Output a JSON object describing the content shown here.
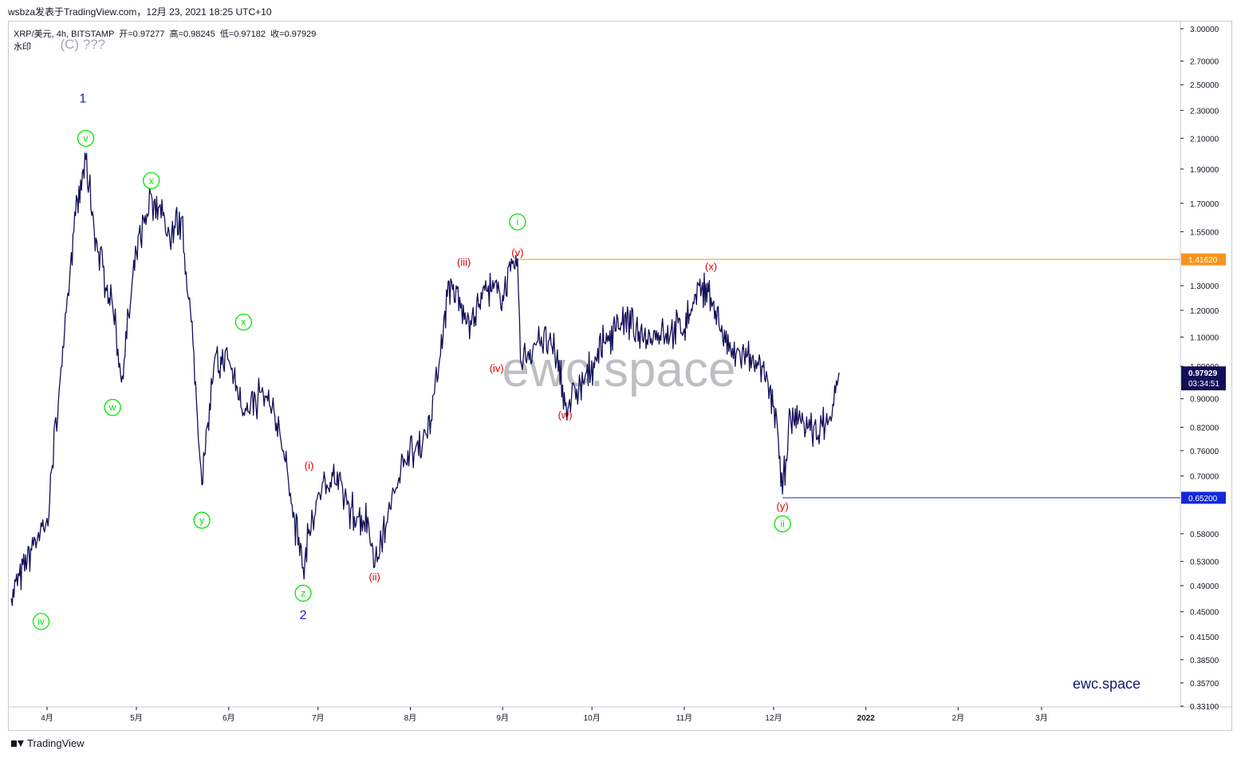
{
  "header": {
    "publish_line": "wsbza发表于TradingView.com，12月 23, 2021 18:25 UTC+10"
  },
  "legend": {
    "line": "XRP/美元, 4h, BITSTAMP  开=0.97277  高=0.98245  低=0.97182  收=0.97929",
    "sub": "水印"
  },
  "watermark": "ewc.space",
  "brand_label": "ewc.space",
  "footer": {
    "brand": "TradingView"
  },
  "colors": {
    "candles": "#131059",
    "green_wave": "#00e600",
    "red_wave": "#e00000",
    "blue_wave": "#1a1ad6",
    "gray_label": "#a5a7b0",
    "orange_level": "#f7941d",
    "blue_level": "#1428d8",
    "last_price_bg": "#131059",
    "brand_text": "#0d1a6e"
  },
  "chart_data": {
    "type": "line",
    "symbol": "XRP/美元",
    "timeframe": "4h",
    "exchange": "BITSTAMP",
    "y_scale": "log",
    "ylim": [
      0.331,
      3.0
    ],
    "y_ticks": [
      "3.00000",
      "2.70000",
      "2.50000",
      "2.30000",
      "2.10000",
      "1.90000",
      "1.70000",
      "1.55000",
      "1.30000",
      "1.20000",
      "1.10000",
      "1.00000",
      "0.90000",
      "0.82000",
      "0.76000",
      "0.70000",
      "0.58000",
      "0.53000",
      "0.49000",
      "0.45000",
      "0.41500",
      "0.38500",
      "0.35700",
      "0.33100"
    ],
    "x_ticks": [
      "4月",
      "5月",
      "6月",
      "7月",
      "8月",
      "9月",
      "10月",
      "11月",
      "12月",
      "2022",
      "2月",
      "3月"
    ],
    "series": [
      {
        "name": "XRP/美元",
        "x": [
          "2021-03-20",
          "2021-03-28",
          "2021-04-01",
          "2021-04-06",
          "2021-04-10",
          "2021-04-14",
          "2021-04-18",
          "2021-04-23",
          "2021-04-26",
          "2021-05-01",
          "2021-05-06",
          "2021-05-12",
          "2021-05-16",
          "2021-05-20",
          "2021-05-23",
          "2021-05-27",
          "2021-06-01",
          "2021-06-06",
          "2021-06-12",
          "2021-06-18",
          "2021-06-22",
          "2021-06-26",
          "2021-07-01",
          "2021-07-06",
          "2021-07-12",
          "2021-07-18",
          "2021-07-20",
          "2021-07-24",
          "2021-07-30",
          "2021-08-05",
          "2021-08-10",
          "2021-08-14",
          "2021-08-20",
          "2021-08-26",
          "2021-09-01",
          "2021-09-06",
          "2021-09-07",
          "2021-09-14",
          "2021-09-20",
          "2021-09-22",
          "2021-09-28",
          "2021-10-05",
          "2021-10-12",
          "2021-10-18",
          "2021-10-25",
          "2021-11-01",
          "2021-11-06",
          "2021-11-10",
          "2021-11-16",
          "2021-11-22",
          "2021-11-28",
          "2021-12-02",
          "2021-12-04",
          "2021-12-06",
          "2021-12-10",
          "2021-12-16",
          "2021-12-20",
          "2021-12-23"
        ],
        "y": [
          0.47,
          0.57,
          0.61,
          1.0,
          1.55,
          1.96,
          1.45,
          1.22,
          0.95,
          1.45,
          1.75,
          1.55,
          1.62,
          1.08,
          0.68,
          1.0,
          1.02,
          0.86,
          0.92,
          0.82,
          0.64,
          0.52,
          0.66,
          0.7,
          0.63,
          0.6,
          0.52,
          0.6,
          0.74,
          0.77,
          0.95,
          1.32,
          1.15,
          1.28,
          1.26,
          1.42,
          1.02,
          1.1,
          1.02,
          0.88,
          0.95,
          1.08,
          1.18,
          1.09,
          1.12,
          1.13,
          1.3,
          1.25,
          1.05,
          1.03,
          0.96,
          0.85,
          0.66,
          0.82,
          0.84,
          0.8,
          0.85,
          0.98
        ]
      }
    ],
    "last_price": 0.97929,
    "last_price_label": "0.97929",
    "countdown": "03:34:51",
    "levels": [
      {
        "value": 1.4162,
        "label": "1.41620",
        "color": "#f7941d"
      },
      {
        "value": 0.652,
        "label": "0.65200",
        "color": "#1428d8"
      }
    ],
    "wave_labels": [
      {
        "text": "(C) ???",
        "date": "2021-04-13",
        "price": 2.85,
        "color": "gray",
        "style": "plain"
      },
      {
        "text": "1",
        "date": "2021-04-13",
        "price": 2.39,
        "color": "blue",
        "style": "plain"
      },
      {
        "text": "v",
        "date": "2021-04-14",
        "price": 2.1,
        "color": "green",
        "style": "circle"
      },
      {
        "text": "x",
        "date": "2021-05-06",
        "price": 1.83,
        "color": "green",
        "style": "circle"
      },
      {
        "text": "w",
        "date": "2021-04-23",
        "price": 0.875,
        "color": "green",
        "style": "circle"
      },
      {
        "text": "x",
        "date": "2021-06-06",
        "price": 1.155,
        "color": "green",
        "style": "circle"
      },
      {
        "text": "y",
        "date": "2021-05-23",
        "price": 0.606,
        "color": "green",
        "style": "circle"
      },
      {
        "text": "z",
        "date": "2021-06-26",
        "price": 0.478,
        "color": "green",
        "style": "circle"
      },
      {
        "text": "2",
        "date": "2021-06-26",
        "price": 0.445,
        "color": "blue",
        "style": "plain"
      },
      {
        "text": "iv",
        "date": "2021-03-30",
        "price": 0.436,
        "color": "green",
        "style": "circle"
      },
      {
        "text": "(i)",
        "date": "2021-06-28",
        "price": 0.725,
        "color": "red",
        "style": "plain"
      },
      {
        "text": "(ii)",
        "date": "2021-07-20",
        "price": 0.505,
        "color": "red",
        "style": "plain"
      },
      {
        "text": "(iii)",
        "date": "2021-08-19",
        "price": 1.405,
        "color": "red",
        "style": "plain"
      },
      {
        "text": "(iv)",
        "date": "2021-08-30",
        "price": 0.995,
        "color": "red",
        "style": "plain"
      },
      {
        "text": "(v)",
        "date": "2021-09-06",
        "price": 1.45,
        "color": "red",
        "style": "plain"
      },
      {
        "text": "i",
        "date": "2021-09-06",
        "price": 1.6,
        "color": "green",
        "style": "circle"
      },
      {
        "text": "(w)",
        "date": "2021-09-22",
        "price": 0.855,
        "color": "red",
        "style": "plain"
      },
      {
        "text": "(x)",
        "date": "2021-11-10",
        "price": 1.385,
        "color": "red",
        "style": "plain"
      },
      {
        "text": "(y)",
        "date": "2021-12-04",
        "price": 0.635,
        "color": "red",
        "style": "plain"
      },
      {
        "text": "ii",
        "date": "2021-12-04",
        "price": 0.599,
        "color": "green",
        "style": "circle"
      }
    ]
  }
}
